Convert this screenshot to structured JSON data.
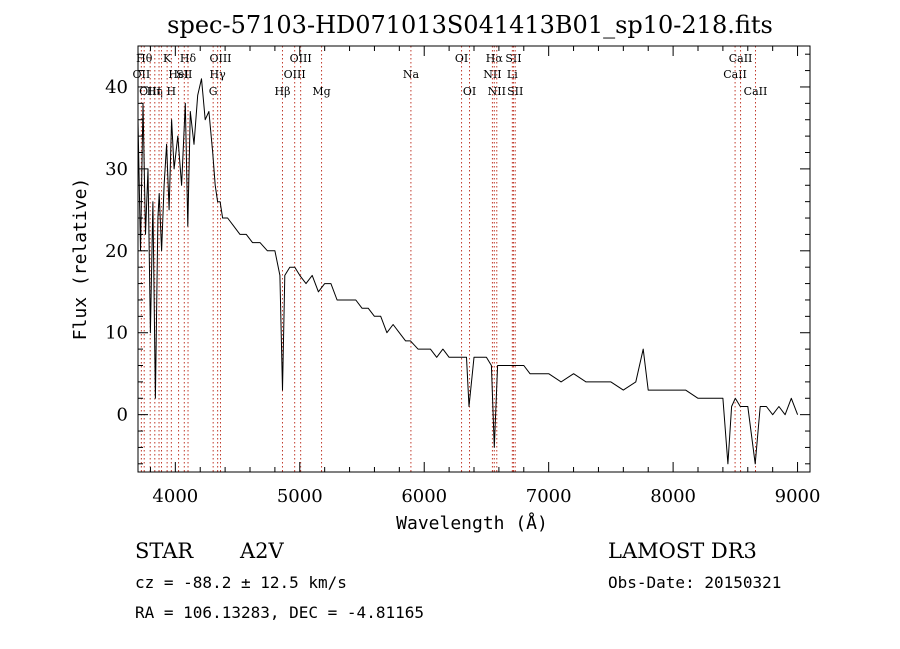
{
  "chart_data": {
    "type": "line",
    "title": "spec-57103-HD071013S041413B01_sp10-218.fits",
    "xlabel": "Wavelength (Å)",
    "ylabel": "Flux (relative)",
    "xlim": [
      3700,
      9100
    ],
    "ylim": [
      -7,
      45
    ],
    "xticks": [
      4000,
      5000,
      6000,
      7000,
      8000,
      9000
    ],
    "yticks": [
      0,
      10,
      20,
      30,
      40
    ],
    "grid": false,
    "series": [
      {
        "name": "spectrum",
        "x": [
          3700,
          3720,
          3740,
          3760,
          3780,
          3800,
          3820,
          3840,
          3860,
          3870,
          3890,
          3910,
          3930,
          3950,
          3970,
          3990,
          4020,
          4050,
          4080,
          4100,
          4120,
          4150,
          4180,
          4210,
          4240,
          4270,
          4300,
          4320,
          4340,
          4360,
          4380,
          4420,
          4470,
          4520,
          4570,
          4620,
          4680,
          4740,
          4800,
          4840,
          4861,
          4880,
          4920,
          4960,
          5000,
          5050,
          5100,
          5150,
          5200,
          5250,
          5300,
          5350,
          5400,
          5450,
          5500,
          5550,
          5600,
          5650,
          5700,
          5750,
          5800,
          5850,
          5890,
          5950,
          6000,
          6050,
          6100,
          6150,
          6200,
          6250,
          6300,
          6340,
          6360,
          6400,
          6450,
          6500,
          6540,
          6563,
          6590,
          6650,
          6700,
          6750,
          6800,
          6850,
          6900,
          6950,
          7000,
          7100,
          7200,
          7300,
          7400,
          7500,
          7600,
          7700,
          7760,
          7800,
          7900,
          8000,
          8100,
          8200,
          8300,
          8400,
          8440,
          8470,
          8500,
          8540,
          8600,
          8660,
          8700,
          8750,
          8800,
          8850,
          8900,
          8950,
          9000
        ],
        "values": [
          36,
          20,
          38,
          22,
          30,
          10,
          26,
          2,
          24,
          27,
          20,
          28,
          33,
          25,
          36,
          30,
          34,
          28,
          38,
          23,
          37,
          33,
          39,
          41,
          36,
          37,
          32,
          28,
          26,
          26,
          24,
          24,
          23,
          22,
          22,
          21,
          21,
          20,
          20,
          17,
          3,
          17,
          18,
          18,
          17,
          16,
          17,
          15,
          16,
          16,
          14,
          14,
          14,
          14,
          13,
          13,
          12,
          12,
          10,
          11,
          10,
          9,
          9,
          8,
          8,
          8,
          7,
          8,
          7,
          7,
          7,
          7,
          1,
          7,
          7,
          7,
          6,
          -4,
          6,
          6,
          6,
          6,
          6,
          5,
          5,
          5,
          5,
          4,
          5,
          4,
          4,
          4,
          3,
          4,
          8,
          3,
          3,
          3,
          3,
          2,
          2,
          2,
          -6,
          1,
          2,
          1,
          1,
          -6,
          1,
          1,
          0,
          1,
          0,
          2,
          0
        ]
      }
    ],
    "line_markers": [
      {
        "wl": 3750,
        "label": "Hθ",
        "row": 1
      },
      {
        "wl": 3727,
        "label": "OII",
        "row": 2
      },
      {
        "wl": 3798,
        "label": "OIII",
        "row": 3
      },
      {
        "wl": 3835,
        "label": "Hη",
        "row": 3
      },
      {
        "wl": 3869,
        "label": "",
        "row": 0
      },
      {
        "wl": 3889,
        "label": "",
        "row": 0
      },
      {
        "wl": 3934,
        "label": "K",
        "row": 1
      },
      {
        "wl": 3968,
        "label": "H",
        "row": 3
      },
      {
        "wl": 4026,
        "label": "HeI",
        "row": 2
      },
      {
        "wl": 4072,
        "label": "SII",
        "row": 2
      },
      {
        "wl": 4102,
        "label": "Hδ",
        "row": 1
      },
      {
        "wl": 4304,
        "label": "G",
        "row": 3
      },
      {
        "wl": 4340,
        "label": "Hγ",
        "row": 2
      },
      {
        "wl": 4363,
        "label": "OIII",
        "row": 1
      },
      {
        "wl": 4861,
        "label": "Hβ",
        "row": 3
      },
      {
        "wl": 4959,
        "label": "OIII",
        "row": 2
      },
      {
        "wl": 5007,
        "label": "OIII",
        "row": 1
      },
      {
        "wl": 5175,
        "label": "Mg",
        "row": 3
      },
      {
        "wl": 5893,
        "label": "Na",
        "row": 2
      },
      {
        "wl": 6300,
        "label": "OI",
        "row": 1
      },
      {
        "wl": 6364,
        "label": "OI",
        "row": 3
      },
      {
        "wl": 6548,
        "label": "NII",
        "row": 2
      },
      {
        "wl": 6563,
        "label": "Hα",
        "row": 1
      },
      {
        "wl": 6583,
        "label": "NII",
        "row": 3
      },
      {
        "wl": 6708,
        "label": "Li",
        "row": 2
      },
      {
        "wl": 6717,
        "label": "SII",
        "row": 1
      },
      {
        "wl": 6731,
        "label": "SII",
        "row": 3
      },
      {
        "wl": 8498,
        "label": "CaII",
        "row": 2
      },
      {
        "wl": 8542,
        "label": "CaII",
        "row": 1
      },
      {
        "wl": 8662,
        "label": "CaII",
        "row": 3
      }
    ]
  },
  "info": {
    "object_type": "STAR",
    "subclass": "A2V",
    "survey": "LAMOST DR3",
    "redshift": "cz = -88.2 ± 12.5 km/s",
    "obs_date": "Obs-Date: 20150321",
    "coords": "RA = 106.13283, DEC =  -4.81165"
  }
}
